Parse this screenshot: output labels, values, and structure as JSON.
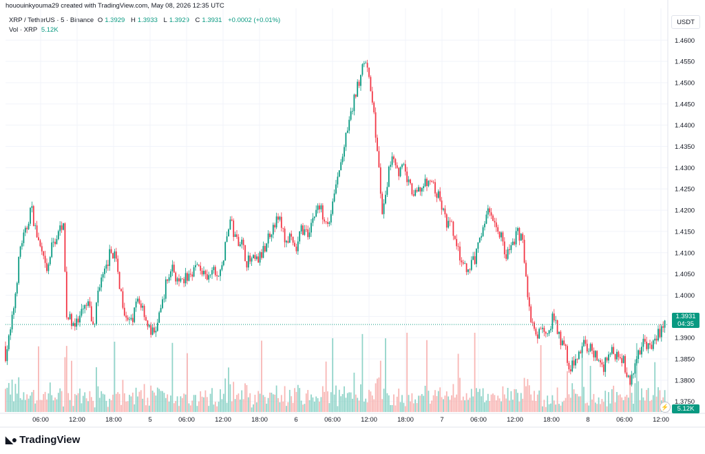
{
  "credit": "hououinkyouma29 created with TradingView.com, May 08, 2026 12:35 UTC",
  "legend": {
    "symbol": "XRP / TetherUS · 5 · Binance",
    "open_label": "O",
    "open": "1.3929",
    "high_label": "H",
    "high": "1.3933",
    "low_label": "L",
    "low": "1.3929",
    "close_label": "C",
    "close": "1.3931",
    "change": "+0.0002 (+0.01%)",
    "vol_label": "Vol · XRP",
    "vol_value": "5.12K"
  },
  "currency_button": "USDT",
  "price_tag": "1.3931",
  "countdown_tag": "04:35",
  "volume_tag": "5.12K",
  "brand": "TradingView",
  "colors": {
    "up": "#089981",
    "down": "#f23645",
    "vol_up": "#7ecdc0",
    "vol_down": "#f7a9a7",
    "grid": "#f0f3fa"
  },
  "chart_data": {
    "type": "candlestick",
    "symbol": "XRP/USDT",
    "interval": "5",
    "y_ticks": [
      "1.3750",
      "1.3800",
      "1.3850",
      "1.3900",
      "1.3950",
      "1.4000",
      "1.4050",
      "1.4100",
      "1.4150",
      "1.4200",
      "1.4250",
      "1.4300",
      "1.4350",
      "1.4400",
      "1.4450",
      "1.4500",
      "1.4550",
      "1.4600"
    ],
    "ylim": [
      1.3722,
      1.4675
    ],
    "x_ticks": [
      "06:00",
      "12:00",
      "18:00",
      "5",
      "06:00",
      "12:00",
      "18:00",
      "6",
      "06:00",
      "12:00",
      "18:00",
      "7",
      "06:00",
      "12:00",
      "18:00",
      "8",
      "06:00",
      "12:00"
    ],
    "last_price": 1.3931,
    "price_path": [
      [
        0,
        1.388
      ],
      [
        8,
        1.386
      ],
      [
        16,
        1.392
      ],
      [
        22,
        1.4
      ],
      [
        30,
        1.412
      ],
      [
        38,
        1.415
      ],
      [
        45,
        1.421
      ],
      [
        52,
        1.415
      ],
      [
        60,
        1.41
      ],
      [
        68,
        1.405
      ],
      [
        76,
        1.412
      ],
      [
        84,
        1.414
      ],
      [
        92,
        1.418
      ],
      [
        96,
        1.395
      ],
      [
        104,
        1.394
      ],
      [
        112,
        1.393
      ],
      [
        120,
        1.396
      ],
      [
        128,
        1.398
      ],
      [
        136,
        1.392
      ],
      [
        144,
        1.403
      ],
      [
        152,
        1.405
      ],
      [
        160,
        1.41
      ],
      [
        166,
        1.41
      ],
      [
        172,
        1.404
      ],
      [
        180,
        1.397
      ],
      [
        190,
        1.393
      ],
      [
        200,
        1.399
      ],
      [
        208,
        1.397
      ],
      [
        216,
        1.392
      ],
      [
        224,
        1.391
      ],
      [
        232,
        1.395
      ],
      [
        240,
        1.402
      ],
      [
        250,
        1.407
      ],
      [
        260,
        1.402
      ],
      [
        270,
        1.404
      ],
      [
        280,
        1.406
      ],
      [
        290,
        1.407
      ],
      [
        300,
        1.403
      ],
      [
        310,
        1.406
      ],
      [
        318,
        1.404
      ],
      [
        326,
        1.41
      ],
      [
        334,
        1.418
      ],
      [
        342,
        1.413
      ],
      [
        350,
        1.413
      ],
      [
        358,
        1.408
      ],
      [
        366,
        1.408
      ],
      [
        374,
        1.408
      ],
      [
        382,
        1.41
      ],
      [
        390,
        1.414
      ],
      [
        398,
        1.417
      ],
      [
        406,
        1.418
      ],
      [
        414,
        1.413
      ],
      [
        422,
        1.413
      ],
      [
        430,
        1.41
      ],
      [
        438,
        1.416
      ],
      [
        446,
        1.414
      ],
      [
        454,
        1.418
      ],
      [
        462,
        1.421
      ],
      [
        470,
        1.419
      ],
      [
        478,
        1.417
      ],
      [
        486,
        1.424
      ],
      [
        494,
        1.43
      ],
      [
        500,
        1.435
      ],
      [
        508,
        1.441
      ],
      [
        516,
        1.447
      ],
      [
        522,
        1.451
      ],
      [
        528,
        1.456
      ],
      [
        534,
        1.452
      ],
      [
        540,
        1.448
      ],
      [
        546,
        1.437
      ],
      [
        550,
        1.43
      ],
      [
        556,
        1.418
      ],
      [
        562,
        1.426
      ],
      [
        570,
        1.434
      ],
      [
        578,
        1.429
      ],
      [
        586,
        1.43
      ],
      [
        594,
        1.426
      ],
      [
        602,
        1.423
      ],
      [
        610,
        1.425
      ],
      [
        618,
        1.426
      ],
      [
        626,
        1.427
      ],
      [
        634,
        1.424
      ],
      [
        640,
        1.422
      ],
      [
        648,
        1.417
      ],
      [
        656,
        1.416
      ],
      [
        664,
        1.411
      ],
      [
        672,
        1.407
      ],
      [
        680,
        1.405
      ],
      [
        688,
        1.408
      ],
      [
        696,
        1.412
      ],
      [
        704,
        1.418
      ],
      [
        712,
        1.42
      ],
      [
        720,
        1.416
      ],
      [
        728,
        1.414
      ],
      [
        736,
        1.409
      ],
      [
        744,
        1.412
      ],
      [
        752,
        1.415
      ],
      [
        760,
        1.412
      ],
      [
        766,
        1.401
      ],
      [
        772,
        1.393
      ],
      [
        780,
        1.39
      ],
      [
        788,
        1.392
      ],
      [
        796,
        1.392
      ],
      [
        804,
        1.395
      ],
      [
        812,
        1.39
      ],
      [
        820,
        1.388
      ],
      [
        828,
        1.383
      ],
      [
        836,
        1.384
      ],
      [
        844,
        1.388
      ],
      [
        852,
        1.388
      ],
      [
        860,
        1.387
      ],
      [
        868,
        1.385
      ],
      [
        876,
        1.383
      ],
      [
        884,
        1.387
      ],
      [
        892,
        1.386
      ],
      [
        900,
        1.387
      ],
      [
        908,
        1.383
      ],
      [
        914,
        1.379
      ],
      [
        920,
        1.382
      ],
      [
        928,
        1.387
      ],
      [
        936,
        1.389
      ],
      [
        944,
        1.387
      ],
      [
        952,
        1.39
      ],
      [
        960,
        1.392
      ],
      [
        966,
        1.3931
      ]
    ]
  }
}
